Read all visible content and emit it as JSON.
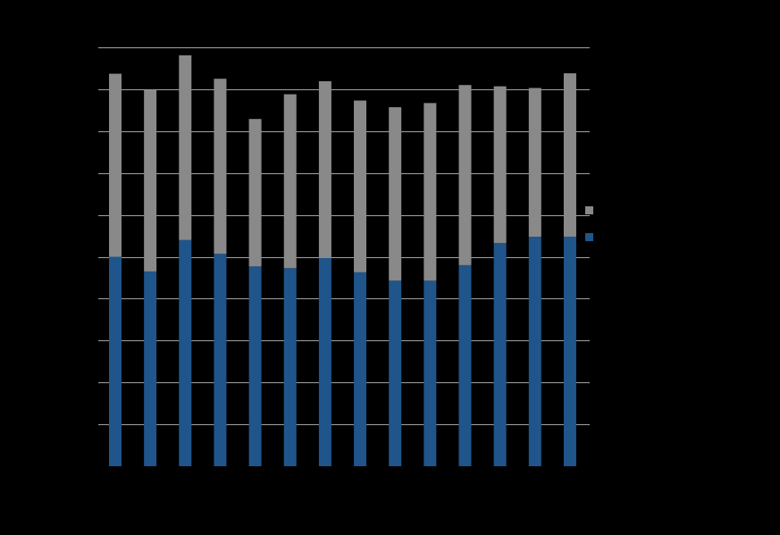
{
  "colors": {
    "background": "#000000",
    "gridline": "#bdbdbd",
    "bottom_series": "#1f558a",
    "top_series": "#898989"
  },
  "chart_data": {
    "type": "bar",
    "stacked": true,
    "grid": true,
    "legend_position": "right",
    "ylim": [
      0,
      10
    ],
    "yticks": [
      0,
      1,
      2,
      3,
      4,
      5,
      6,
      7,
      8,
      9,
      10
    ],
    "categories": [
      "",
      "",
      "",
      "",
      "",
      "",
      "",
      "",
      "",
      "",
      "",
      "",
      "",
      ""
    ],
    "series": [
      {
        "color": "#1f558a",
        "values": [
          5.0,
          4.65,
          5.4,
          5.07,
          4.77,
          4.73,
          4.97,
          4.63,
          4.43,
          4.43,
          4.8,
          5.33,
          5.48,
          5.48
        ]
      },
      {
        "color": "#898989",
        "values": [
          4.37,
          4.33,
          4.41,
          4.18,
          3.52,
          4.15,
          4.22,
          4.1,
          4.14,
          4.24,
          4.3,
          3.74,
          3.55,
          3.9
        ]
      }
    ]
  }
}
